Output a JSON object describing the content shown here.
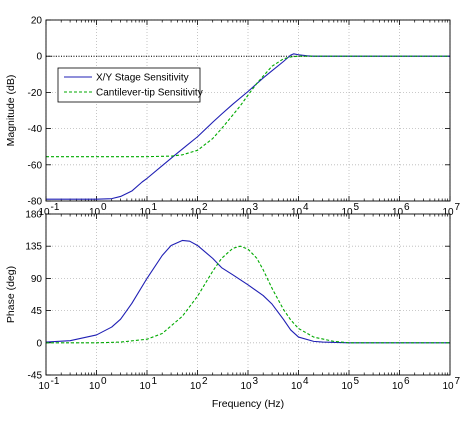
{
  "chart_data": [
    {
      "type": "line",
      "ylabel": "Magnitude (dB)",
      "xlabel": "",
      "xscale": "log",
      "xlim": [
        0.1,
        10000000
      ],
      "ylim": [
        -80,
        20
      ],
      "yticks": [
        "20",
        "0",
        "-20",
        "-40",
        "-60",
        "-80"
      ],
      "grid": "dotted, both axes",
      "reference_line": {
        "y": 0,
        "style": "dotted",
        "color": "#000000"
      },
      "legend": {
        "placement": "upper-left",
        "entries": [
          "X/Y Stage Sensitivity",
          "Cantilever-tip Sensitivity"
        ]
      },
      "series": [
        {
          "name": "X/Y Stage Sensitivity",
          "color": "#1f1fb4",
          "dash": "solid",
          "x": [
            0.1,
            1,
            2,
            3,
            5,
            8,
            10,
            20,
            40,
            60,
            100,
            200,
            300,
            500,
            1000,
            2000,
            3000,
            5000,
            7000,
            8000,
            10000,
            15000,
            20000,
            100000,
            1000000,
            10000000
          ],
          "y": [
            -79,
            -79,
            -78.7,
            -77.5,
            -74.5,
            -69.5,
            -67.5,
            -60.5,
            -53.5,
            -49.5,
            -44.5,
            -36.5,
            -32,
            -26.5,
            -19.5,
            -12,
            -8,
            -3,
            0.6,
            1.3,
            0.8,
            0.2,
            0,
            0,
            0,
            0
          ]
        },
        {
          "name": "Cantilever-tip Sensitivity",
          "color": "#00aa00",
          "dash": "dashed",
          "x": [
            0.1,
            1,
            10,
            30,
            50,
            100,
            200,
            300,
            500,
            700,
            1000,
            1500,
            2000,
            3000,
            5000,
            7000,
            10000,
            20000,
            100000,
            1000000,
            10000000
          ],
          "y": [
            -55.5,
            -55.5,
            -55.5,
            -55.2,
            -54.5,
            -52,
            -45.5,
            -40,
            -32.5,
            -27.5,
            -21.5,
            -15,
            -11,
            -5.5,
            -1.5,
            -0.4,
            0,
            0,
            0,
            0,
            0
          ]
        }
      ]
    },
    {
      "type": "line",
      "ylabel": "Phase (deg)",
      "xlabel": "Frequency  (Hz)",
      "xscale": "log",
      "xlim": [
        0.1,
        10000000
      ],
      "ylim": [
        -45,
        180
      ],
      "yticks": [
        "180",
        "135",
        "90",
        "45",
        "0",
        "-45"
      ],
      "grid": "dotted, both axes",
      "series": [
        {
          "name": "X/Y Stage Sensitivity",
          "color": "#1f1fb4",
          "dash": "solid",
          "x": [
            0.1,
            0.3,
            1,
            2,
            3,
            5,
            10,
            20,
            30,
            50,
            70,
            100,
            200,
            300,
            500,
            1000,
            2000,
            3000,
            5000,
            7000,
            10000,
            20000,
            30000,
            100000,
            1000000,
            10000000
          ],
          "y": [
            1,
            3,
            11,
            22,
            33,
            55,
            90,
            122,
            136,
            143,
            142,
            136,
            118,
            105,
            95,
            81,
            66,
            54,
            33,
            18,
            8,
            2,
            1,
            0,
            0,
            0
          ]
        },
        {
          "name": "Cantilever-tip Sensitivity",
          "color": "#00aa00",
          "dash": "dashed",
          "x": [
            0.1,
            1,
            3,
            10,
            20,
            50,
            100,
            200,
            300,
            500,
            700,
            1000,
            1500,
            2000,
            3000,
            5000,
            7000,
            10000,
            20000,
            50000,
            100000,
            1000000,
            10000000
          ],
          "y": [
            0,
            0,
            1,
            5,
            13,
            37,
            65,
            100,
            118,
            132,
            135,
            131,
            118,
            102,
            76,
            47,
            32,
            20,
            8,
            2,
            0,
            0,
            0
          ]
        }
      ]
    }
  ],
  "shared_xticks": {
    "base": "10",
    "exponents": [
      "-1",
      "0",
      "1",
      "2",
      "3",
      "4",
      "5",
      "6",
      "7"
    ]
  }
}
